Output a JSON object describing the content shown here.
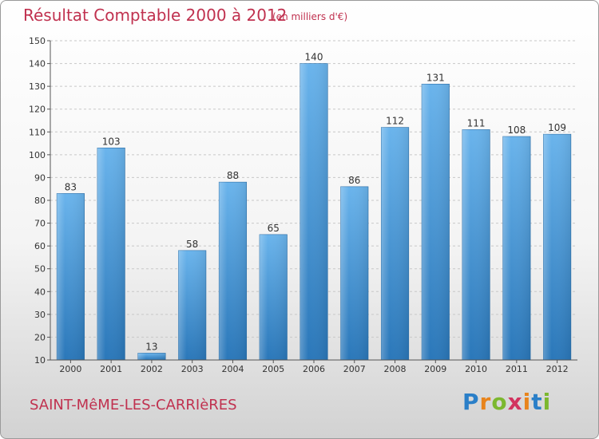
{
  "title": "Résultat Comptable 2000 à 2012",
  "subtitle": "(en milliers d'€)",
  "commune": "SAINT-MêME-LES-CARRIèRES",
  "logo": {
    "letters": [
      "P",
      "r",
      "o",
      "x",
      "i",
      "t",
      "i"
    ],
    "colors": [
      "#2a7fc8",
      "#e8841c",
      "#7cb82f",
      "#d2335f",
      "#e8841c",
      "#2a7fc8",
      "#7cb82f"
    ]
  },
  "colors": {
    "bar_top": "#6ab4ec",
    "bar_bottom": "#2a77b9",
    "title": "#c0314f"
  },
  "chart_data": {
    "type": "bar",
    "categories": [
      "2000",
      "2001",
      "2002",
      "2003",
      "2004",
      "2005",
      "2006",
      "2007",
      "2008",
      "2009",
      "2010",
      "2011",
      "2012"
    ],
    "values": [
      83,
      103,
      13,
      58,
      88,
      65,
      140,
      86,
      112,
      131,
      111,
      108,
      109
    ],
    "ylim": [
      10,
      150
    ],
    "yticks": [
      10,
      20,
      30,
      40,
      50,
      60,
      70,
      80,
      90,
      100,
      110,
      120,
      130,
      140,
      150
    ],
    "grid": true,
    "xlabel": "",
    "ylabel": ""
  }
}
